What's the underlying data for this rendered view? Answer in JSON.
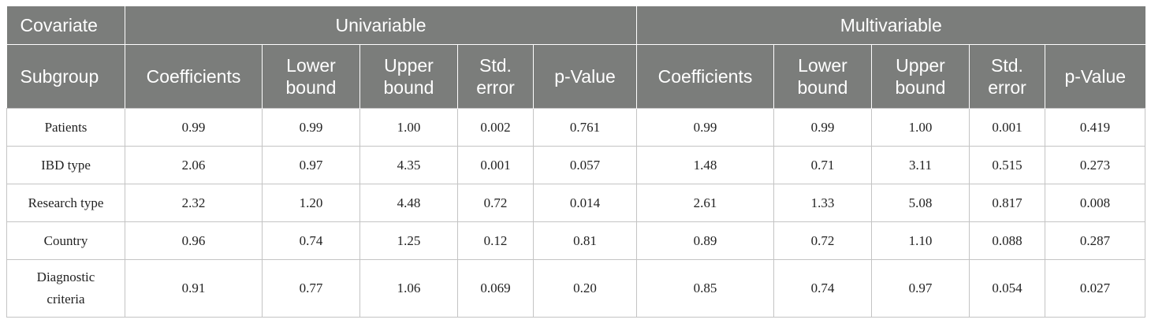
{
  "header": {
    "covariate": "Covariate",
    "subgroup": "Subgroup",
    "groups": [
      "Univariable",
      "Multivariable"
    ],
    "columns": [
      "Coefficients",
      "Lower\nbound",
      "Upper\nbound",
      "Std.\nerror",
      "p-Value"
    ]
  },
  "rows": [
    {
      "label": "Patients",
      "uni": [
        "0.99",
        "0.99",
        "1.00",
        "0.002",
        "0.761"
      ],
      "multi": [
        "0.99",
        "0.99",
        "1.00",
        "0.001",
        "0.419"
      ]
    },
    {
      "label": "IBD type",
      "uni": [
        "2.06",
        "0.97",
        "4.35",
        "0.001",
        "0.057"
      ],
      "multi": [
        "1.48",
        "0.71",
        "3.11",
        "0.515",
        "0.273"
      ]
    },
    {
      "label": "Research type",
      "uni": [
        "2.32",
        "1.20",
        "4.48",
        "0.72",
        "0.014"
      ],
      "multi": [
        "2.61",
        "1.33",
        "5.08",
        "0.817",
        "0.008"
      ]
    },
    {
      "label": "Country",
      "uni": [
        "0.96",
        "0.74",
        "1.25",
        "0.12",
        "0.81"
      ],
      "multi": [
        "0.89",
        "0.72",
        "1.10",
        "0.088",
        "0.287"
      ]
    },
    {
      "label": "Diagnostic\ncriteria",
      "uni": [
        "0.91",
        "0.77",
        "1.06",
        "0.069",
        "0.20"
      ],
      "multi": [
        "0.85",
        "0.74",
        "0.97",
        "0.054",
        "0.027"
      ]
    }
  ]
}
